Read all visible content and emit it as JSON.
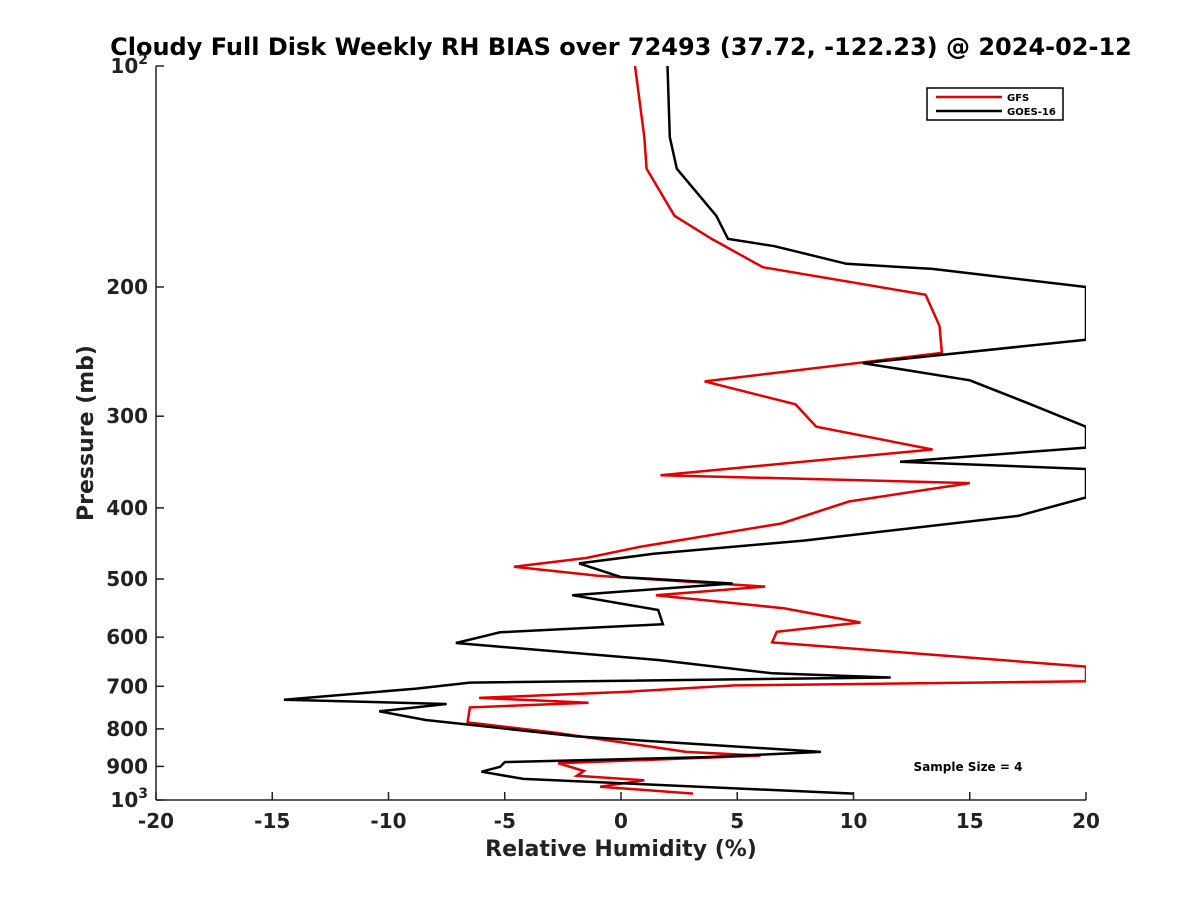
{
  "chart_data": {
    "type": "line",
    "title": "Cloudy Full Disk Weekly RH BIAS over 72493 (37.72, -122.23) @ 2024-02-12",
    "xlabel": "Relative Humidity (%)",
    "ylabel": "Pressure (mb)",
    "xlim": [
      -20,
      20
    ],
    "ylim": [
      100,
      1000
    ],
    "y_scale": "log",
    "y_reversed": true,
    "grid": false,
    "legend_position": "top-right",
    "annotation": "Sample Size = 4",
    "x_ticks": [
      "-20",
      "-15",
      "-10",
      "-5",
      "0",
      "5",
      "10",
      "15",
      "20"
    ],
    "y_ticks": [
      {
        "value": 100,
        "base": "10",
        "exp": "2"
      },
      {
        "value": 200,
        "label": "200"
      },
      {
        "value": 300,
        "label": "300"
      },
      {
        "value": 400,
        "label": "400"
      },
      {
        "value": 500,
        "label": "500"
      },
      {
        "value": 600,
        "label": "600"
      },
      {
        "value": 700,
        "label": "700"
      },
      {
        "value": 800,
        "label": "800"
      },
      {
        "value": 900,
        "label": "900"
      },
      {
        "value": 1000,
        "base": "10",
        "exp": "3"
      }
    ],
    "series": [
      {
        "name": "GFS",
        "color": "#e00000",
        "points": [
          [
            0.6,
            100
          ],
          [
            1.0,
            125
          ],
          [
            1.1,
            138
          ],
          [
            2.3,
            160
          ],
          [
            3.9,
            172
          ],
          [
            6.1,
            188
          ],
          [
            13.1,
            205
          ],
          [
            13.7,
            226
          ],
          [
            13.8,
            246
          ],
          [
            3.6,
            269
          ],
          [
            7.5,
            289
          ],
          [
            8.4,
            310
          ],
          [
            13.4,
            333
          ],
          [
            1.7,
            361
          ],
          [
            15.0,
            370
          ],
          [
            9.8,
            392
          ],
          [
            6.9,
            420
          ],
          [
            0.8,
            452
          ],
          [
            -1.5,
            468
          ],
          [
            -4.6,
            481
          ],
          [
            -1.0,
            495
          ],
          [
            6.2,
            512
          ],
          [
            1.5,
            526
          ],
          [
            7.0,
            548
          ],
          [
            10.3,
            573
          ],
          [
            6.7,
            590
          ],
          [
            6.5,
            610
          ],
          [
            20.0,
            658
          ],
          [
            20.0,
            689
          ],
          [
            4.9,
            698
          ],
          [
            0.3,
            712
          ],
          [
            -6.1,
            726
          ],
          [
            -1.4,
            737
          ],
          [
            -6.5,
            748
          ],
          [
            -6.6,
            784
          ],
          [
            -2.8,
            810
          ],
          [
            1.5,
            848
          ],
          [
            2.8,
            860
          ],
          [
            6.0,
            870
          ],
          [
            -2.7,
            891
          ],
          [
            -1.6,
            913
          ],
          [
            -1.9,
            927
          ],
          [
            1.0,
            940
          ],
          [
            -0.9,
            959
          ],
          [
            3.1,
            980
          ]
        ]
      },
      {
        "name": "GOES-16",
        "color": "#000000",
        "points": [
          [
            2.0,
            100
          ],
          [
            2.1,
            125
          ],
          [
            2.4,
            138
          ],
          [
            4.1,
            160
          ],
          [
            4.6,
            172
          ],
          [
            6.6,
            176
          ],
          [
            9.7,
            186
          ],
          [
            13.4,
            189
          ],
          [
            20.0,
            200
          ],
          [
            20.0,
            236
          ],
          [
            10.4,
            254
          ],
          [
            15.0,
            268
          ],
          [
            17.5,
            288
          ],
          [
            20.0,
            310
          ],
          [
            20.0,
            331
          ],
          [
            12.0,
            346
          ],
          [
            20.0,
            354
          ],
          [
            20.0,
            387
          ],
          [
            17.1,
            410
          ],
          [
            7.9,
            443
          ],
          [
            1.4,
            462
          ],
          [
            -1.8,
            476
          ],
          [
            0.0,
            497
          ],
          [
            4.8,
            507
          ],
          [
            -2.1,
            526
          ],
          [
            1.6,
            551
          ],
          [
            1.8,
            576
          ],
          [
            -5.2,
            591
          ],
          [
            -7.1,
            611
          ],
          [
            1.7,
            645
          ],
          [
            6.5,
            672
          ],
          [
            11.6,
            681
          ],
          [
            -6.5,
            692
          ],
          [
            -8.8,
            705
          ],
          [
            -14.5,
            730
          ],
          [
            -7.5,
            740
          ],
          [
            -10.4,
            757
          ],
          [
            -8.4,
            778
          ],
          [
            -1.9,
            819
          ],
          [
            8.6,
            860
          ],
          [
            3.7,
            874
          ],
          [
            -5.0,
            888
          ],
          [
            -5.2,
            901
          ],
          [
            -6.0,
            915
          ],
          [
            -4.2,
            936
          ],
          [
            10.0,
            980
          ]
        ]
      }
    ]
  }
}
